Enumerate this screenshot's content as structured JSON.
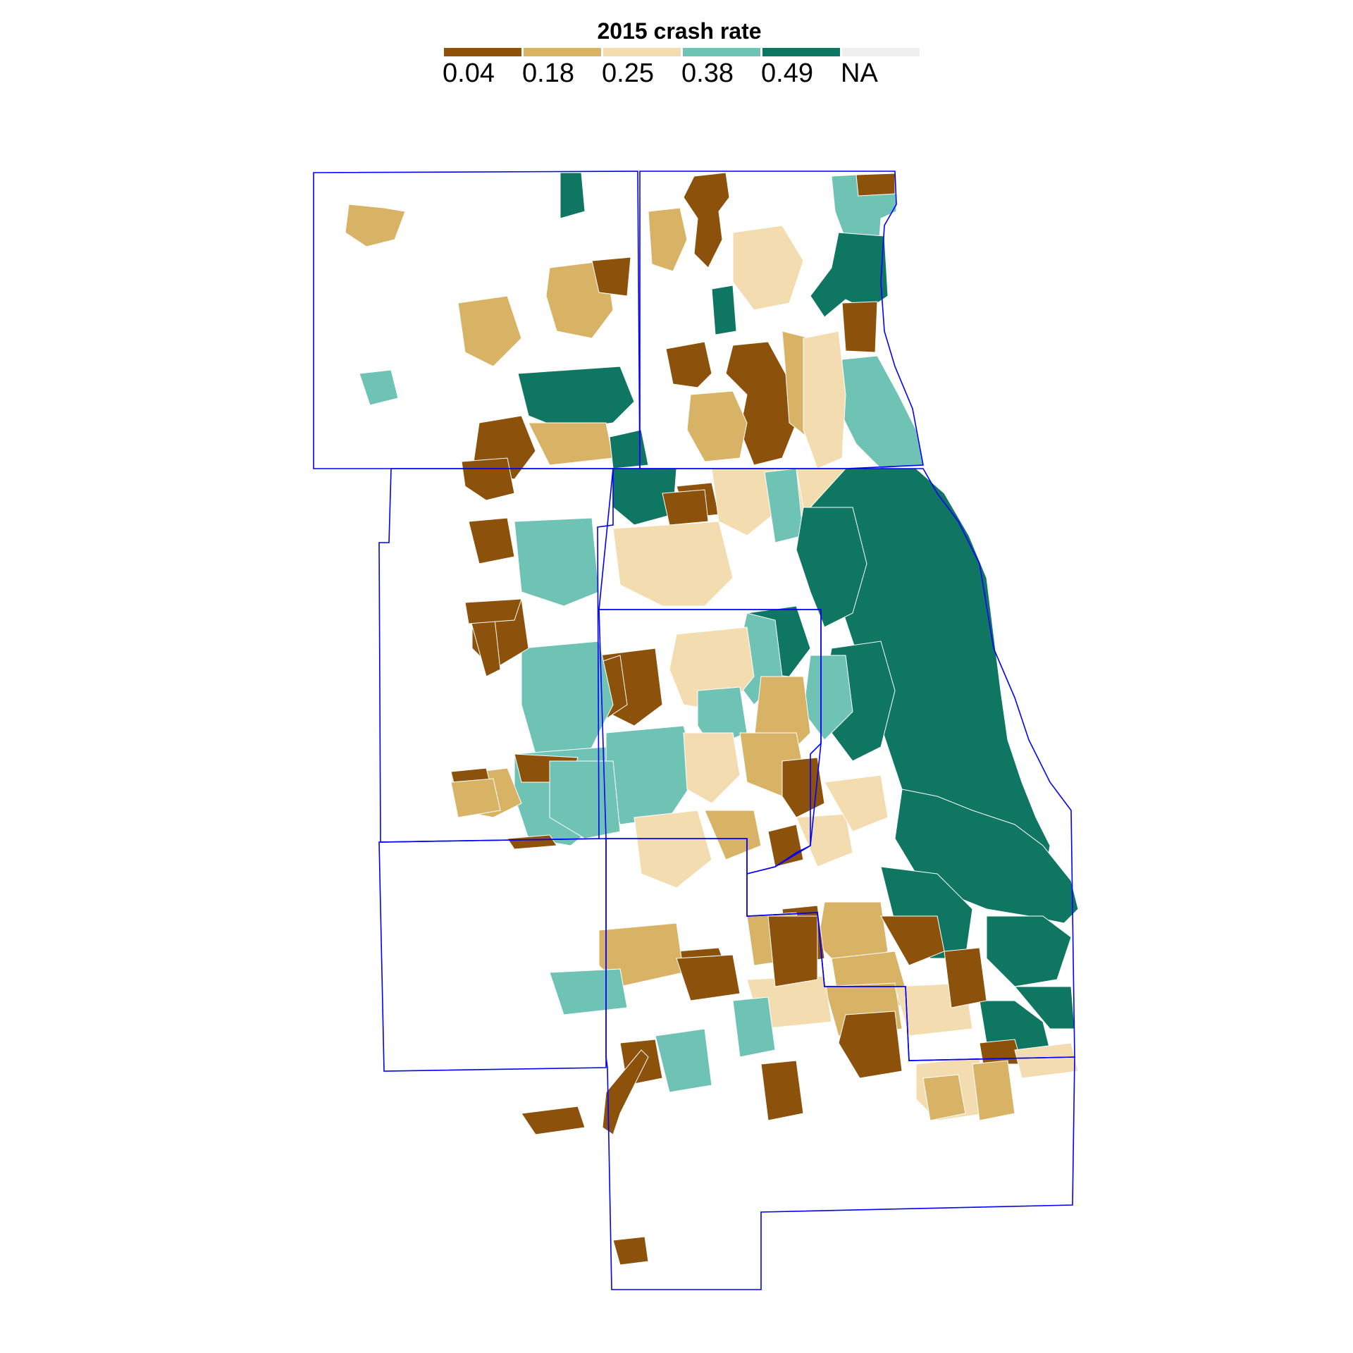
{
  "map": {
    "legend": {
      "title": "2015 crash rate",
      "classes": [
        {
          "label": "0.04",
          "color": "#8c510a"
        },
        {
          "label": "0.18",
          "color": "#d8b365"
        },
        {
          "label": "0.25",
          "color": "#f3ddb0"
        },
        {
          "label": "0.38",
          "color": "#6fc3b4"
        },
        {
          "label": "0.49",
          "color": "#0f7662"
        },
        {
          "label": "NA",
          "color": "#efefef"
        }
      ]
    },
    "boundary_color": "#0000ff"
  }
}
